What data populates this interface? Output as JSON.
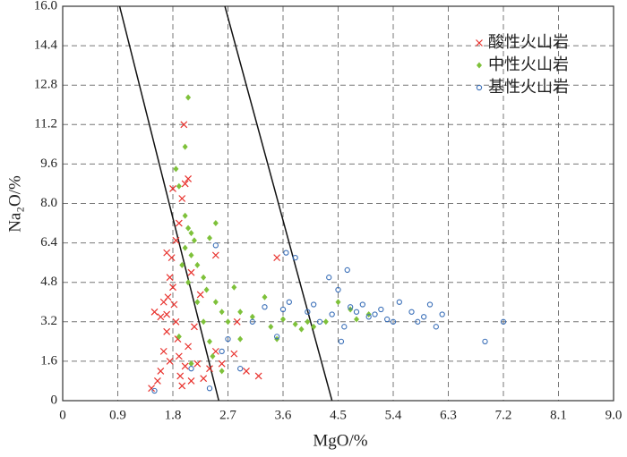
{
  "chart_data": {
    "type": "scatter",
    "xlabel": "MgO/%",
    "ylabel": "Na₂O/%",
    "xlim": [
      0,
      9
    ],
    "ylim": [
      0,
      16
    ],
    "xticks": [
      0,
      0.9,
      1.8,
      2.7,
      3.6,
      4.5,
      5.4,
      6.3,
      7.2,
      8.1,
      {
        "value": 9,
        "label": "9.0"
      }
    ],
    "yticks": [
      0,
      1.6,
      3.2,
      4.8,
      6.4,
      {
        "value": 8,
        "label": "8.0"
      },
      9.6,
      11.2,
      12.8,
      14.4,
      {
        "value": 16,
        "label": "16.0"
      }
    ],
    "grid": true,
    "legend": "upper right",
    "lines": [
      {
        "x": [
          0.93,
          2.55
        ],
        "y": [
          16,
          0
        ]
      },
      {
        "x": [
          2.65,
          4.4
        ],
        "y": [
          16,
          0
        ]
      }
    ],
    "series": [
      {
        "name": "酸性火山岩",
        "color": "#e8312c",
        "marker": "x",
        "x": [
          1.45,
          1.55,
          1.6,
          1.65,
          1.7,
          1.7,
          1.72,
          1.75,
          1.78,
          1.8,
          1.82,
          1.85,
          1.88,
          1.9,
          1.92,
          1.95,
          2.0,
          2.05,
          2.1,
          2.2,
          2.3,
          2.4,
          2.5,
          1.85,
          1.9,
          1.95,
          2.0,
          1.98,
          2.05,
          1.8,
          1.6,
          1.65,
          1.5,
          1.75,
          2.6,
          2.8,
          3.0,
          3.2,
          3.5,
          2.5,
          2.15,
          2.25,
          1.7,
          2.85,
          2.1
        ],
        "values": [
          0.5,
          0.8,
          1.2,
          2.0,
          2.8,
          3.5,
          4.2,
          5.0,
          5.8,
          4.6,
          3.9,
          3.2,
          2.5,
          1.8,
          1.0,
          0.6,
          1.4,
          2.2,
          0.8,
          1.5,
          0.9,
          1.3,
          2.0,
          6.5,
          7.2,
          8.2,
          8.8,
          11.2,
          9.0,
          8.6,
          3.4,
          4.0,
          3.6,
          1.6,
          1.5,
          1.9,
          1.2,
          1.0,
          5.8,
          5.9,
          3.0,
          4.3,
          6.0,
          3.2,
          5.2
        ]
      },
      {
        "name": "中性火山岩",
        "color": "#7ec13a",
        "marker": "diamond",
        "x": [
          2.05,
          2.0,
          1.85,
          1.9,
          2.0,
          2.05,
          2.1,
          2.15,
          2.0,
          2.1,
          2.2,
          2.3,
          2.4,
          2.5,
          2.35,
          2.5,
          2.6,
          2.7,
          2.8,
          2.9,
          3.1,
          3.3,
          3.4,
          3.6,
          3.8,
          3.9,
          4.0,
          4.1,
          4.3,
          4.5,
          4.7,
          4.8,
          1.95,
          2.05,
          2.2,
          2.3,
          2.4,
          2.45,
          2.6,
          2.1,
          1.9,
          2.9,
          3.5,
          5.0
        ],
        "values": [
          12.3,
          10.3,
          9.4,
          8.7,
          7.5,
          7.0,
          6.8,
          6.5,
          6.2,
          5.9,
          5.5,
          5.0,
          6.6,
          7.2,
          4.5,
          4.0,
          3.6,
          3.2,
          4.6,
          3.6,
          3.4,
          4.2,
          3.0,
          3.3,
          3.1,
          2.9,
          3.2,
          3.0,
          3.2,
          4.0,
          3.7,
          3.3,
          5.5,
          4.8,
          4.0,
          3.2,
          2.4,
          1.8,
          1.2,
          1.5,
          2.6,
          2.5,
          2.5,
          3.5
        ]
      },
      {
        "name": "基性火山岩",
        "color": "#3a6fb8",
        "marker": "circle",
        "x": [
          1.5,
          2.1,
          2.4,
          2.6,
          2.7,
          2.9,
          3.5,
          3.6,
          3.65,
          3.8,
          3.7,
          4.0,
          4.1,
          4.2,
          4.35,
          4.4,
          4.5,
          4.55,
          4.6,
          4.65,
          4.7,
          4.8,
          4.9,
          5.0,
          5.1,
          5.2,
          5.3,
          5.4,
          5.5,
          5.7,
          5.8,
          5.9,
          6.0,
          6.1,
          6.2,
          7.2,
          6.9,
          3.3,
          2.5,
          3.1
        ],
        "values": [
          0.4,
          1.3,
          0.5,
          2.0,
          2.5,
          1.3,
          2.6,
          3.7,
          6.0,
          5.8,
          4.0,
          3.6,
          3.9,
          3.2,
          5.0,
          3.5,
          4.5,
          2.4,
          3.0,
          5.3,
          3.8,
          3.6,
          3.9,
          3.4,
          3.5,
          3.7,
          3.3,
          3.2,
          4.0,
          3.6,
          3.2,
          3.4,
          3.9,
          3.0,
          3.5,
          3.2,
          2.4,
          3.8,
          6.3,
          3.2
        ]
      }
    ]
  }
}
